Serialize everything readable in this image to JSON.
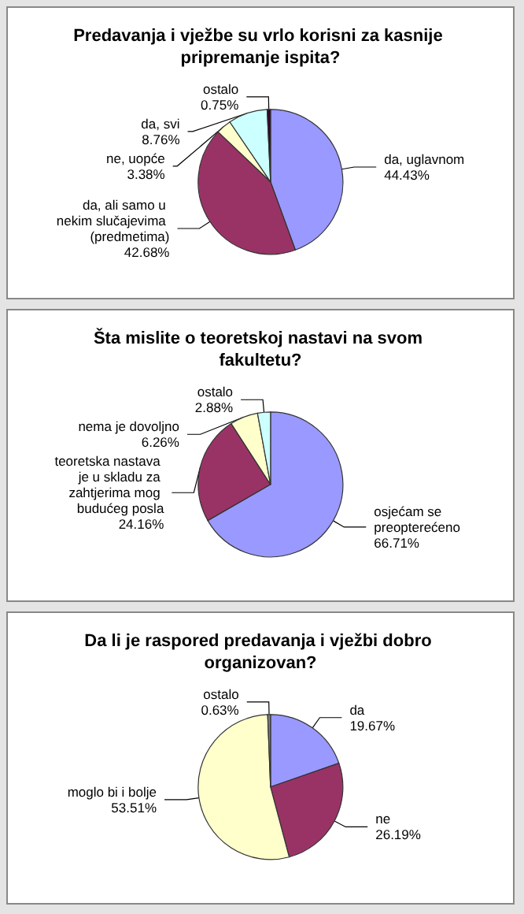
{
  "chart_data": [
    {
      "type": "pie",
      "title": "Predavanja i vježbe su vrlo korisni za kasnije pripremanje ispita?",
      "categories": [
        "da, uglavnom",
        "da, ali samo u nekim slučajevima (predmetima)",
        "ne, uopće",
        "da, svi",
        "ostalo"
      ],
      "values": [
        44.43,
        42.68,
        3.38,
        8.76,
        0.75
      ],
      "value_labels": [
        "44.43%",
        "42.68%",
        "3.38%",
        "8.76%",
        "0.75%"
      ],
      "colors": [
        "#9999ff",
        "#993366",
        "#ffffcc",
        "#ccffff",
        "#330033"
      ]
    },
    {
      "type": "pie",
      "title": "Šta mislite o teoretskoj nastavi na svom fakultetu?",
      "categories": [
        "osjećam se preopterećeno",
        "teoretska nastava je u skladu za zahtjerima mog budućeg posla",
        "nema je dovoljno",
        "ostalo"
      ],
      "values": [
        66.71,
        24.16,
        6.26,
        2.88
      ],
      "value_labels": [
        "66.71%",
        "24.16%",
        "6.26%",
        "2.88%"
      ],
      "colors": [
        "#9999ff",
        "#993366",
        "#ffffcc",
        "#ccffff"
      ]
    },
    {
      "type": "pie",
      "title": "Da li je raspored predavanja i vježbi dobro organizovan?",
      "categories": [
        "da",
        "ne",
        "moglo bi i bolje",
        "ostalo"
      ],
      "values": [
        19.67,
        26.19,
        53.51,
        0.63
      ],
      "value_labels": [
        "19.67%",
        "26.19%",
        "53.51%",
        "0.63%"
      ],
      "colors": [
        "#9999ff",
        "#993366",
        "#ffffcc",
        "#808080"
      ]
    }
  ]
}
